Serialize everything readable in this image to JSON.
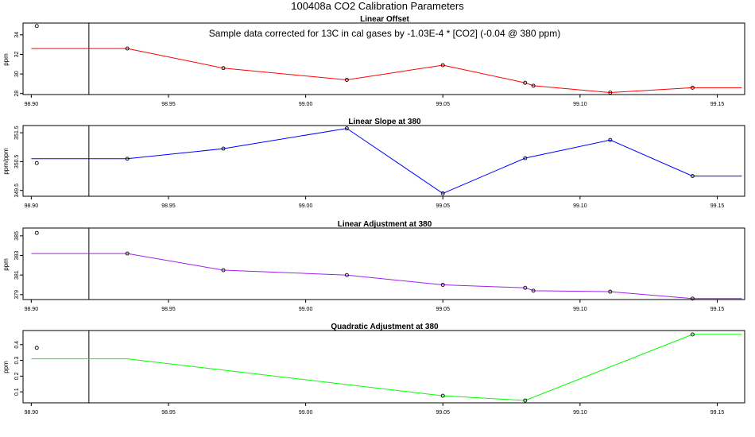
{
  "page_title": "100408a   CO2 Calibration Parameters",
  "colors": {
    "offset": "#ff0000",
    "slope": "#0000ff",
    "adjustment": "#a020f0",
    "quadratic": "#00ff00",
    "reference_line": "#000000"
  },
  "chart_data": [
    {
      "type": "line",
      "title": "Linear Offset",
      "ylabel": "ppm",
      "annotation": "Sample data corrected for 13C in cal gases by -1.03E-4 * [CO2] (-0.04 @ 380 ppm)",
      "xlim": [
        98.897,
        99.16
      ],
      "ylim": [
        27.9,
        35.2
      ],
      "x_ticks": [
        98.9,
        98.95,
        99.0,
        99.05,
        99.1,
        99.15
      ],
      "x_tick_labels": [
        "98.90",
        "98.95",
        "99.00",
        "99.05",
        "99.10",
        "99.15"
      ],
      "y_ticks": [
        28,
        30,
        32,
        34
      ],
      "y_tick_labels": [
        "28",
        "30",
        "32",
        "34"
      ],
      "vertical_line_x": 98.921,
      "line": {
        "x": [
          98.9,
          98.935,
          98.97,
          99.015,
          99.05,
          99.08,
          99.083,
          99.111,
          99.141,
          99.159
        ],
        "y": [
          32.6,
          32.6,
          30.6,
          29.4,
          30.9,
          29.1,
          28.8,
          28.1,
          28.6,
          28.6
        ]
      },
      "points": {
        "x": [
          98.902,
          98.935,
          98.97,
          99.015,
          99.05,
          99.08,
          99.083,
          99.111,
          99.141
        ],
        "y": [
          34.9,
          32.6,
          30.6,
          29.4,
          30.9,
          29.1,
          28.8,
          28.1,
          28.6
        ]
      }
    },
    {
      "type": "line",
      "title": "Linear Slope at 380",
      "ylabel": "ppm/ppm",
      "xlim": [
        98.897,
        99.16
      ],
      "ylim": [
        349.3,
        351.75
      ],
      "x_ticks": [
        98.9,
        98.95,
        99.0,
        99.05,
        99.1,
        99.15
      ],
      "x_tick_labels": [
        "98.90",
        "98.95",
        "99.00",
        "99.05",
        "99.10",
        "99.15"
      ],
      "y_ticks": [
        349.5,
        350.5,
        351.5
      ],
      "y_tick_labels": [
        "349.5",
        "350.5",
        "351.5"
      ],
      "vertical_line_x": 98.921,
      "line": {
        "x": [
          98.9,
          98.935,
          98.97,
          99.015,
          99.05,
          99.08,
          99.111,
          99.141,
          99.159
        ],
        "y": [
          350.6,
          350.6,
          350.95,
          351.65,
          349.4,
          350.62,
          351.25,
          350.0,
          350.0
        ]
      },
      "points": {
        "x": [
          98.902,
          98.935,
          98.97,
          99.015,
          99.05,
          99.08,
          99.111,
          99.141
        ],
        "y": [
          350.45,
          350.6,
          350.95,
          351.65,
          349.4,
          350.62,
          351.25,
          350.0
        ]
      }
    },
    {
      "type": "line",
      "title": "Linear Adjustment at 380",
      "ylabel": "ppm",
      "xlim": [
        98.897,
        99.16
      ],
      "ylim": [
        378.5,
        385.8
      ],
      "x_ticks": [
        98.9,
        98.95,
        99.0,
        99.05,
        99.1,
        99.15
      ],
      "x_tick_labels": [
        "98.90",
        "98.95",
        "99.00",
        "99.05",
        "99.10",
        "99.15"
      ],
      "y_ticks": [
        379,
        381,
        383,
        385
      ],
      "y_tick_labels": [
        "379",
        "381",
        "383",
        "385"
      ],
      "vertical_line_x": 98.921,
      "line": {
        "x": [
          98.9,
          98.935,
          98.97,
          99.015,
          99.05,
          99.08,
          99.083,
          99.111,
          99.141,
          99.159
        ],
        "y": [
          383.2,
          383.2,
          381.5,
          381.0,
          380.0,
          379.7,
          379.4,
          379.3,
          378.6,
          378.6
        ]
      },
      "points": {
        "x": [
          98.902,
          98.935,
          98.97,
          99.015,
          99.05,
          99.08,
          99.083,
          99.111,
          99.141
        ],
        "y": [
          385.3,
          383.2,
          381.5,
          381.0,
          380.0,
          379.7,
          379.4,
          379.3,
          378.6
        ]
      }
    },
    {
      "type": "line",
      "title": "Quadratic Adjustment at 380",
      "ylabel": "ppm",
      "xlim": [
        98.897,
        99.16
      ],
      "ylim": [
        0.03,
        0.49
      ],
      "x_ticks": [
        98.9,
        98.95,
        99.0,
        99.05,
        99.1,
        99.15
      ],
      "x_tick_labels": [
        "98.90",
        "98.95",
        "99.00",
        "99.05",
        "99.10",
        "99.15"
      ],
      "y_ticks": [
        0.1,
        0.2,
        0.3,
        0.4
      ],
      "y_tick_labels": [
        "0.1",
        "0.2",
        "0.3",
        "0.4"
      ],
      "vertical_line_x": 98.921,
      "line": {
        "x": [
          98.9,
          98.935,
          99.05,
          99.08,
          99.141,
          99.159
        ],
        "y": [
          0.31,
          0.31,
          0.075,
          0.045,
          0.465,
          0.465
        ]
      },
      "points": {
        "x": [
          98.902,
          99.05,
          99.08,
          99.141
        ],
        "y": [
          0.38,
          0.075,
          0.045,
          0.465
        ]
      }
    }
  ]
}
